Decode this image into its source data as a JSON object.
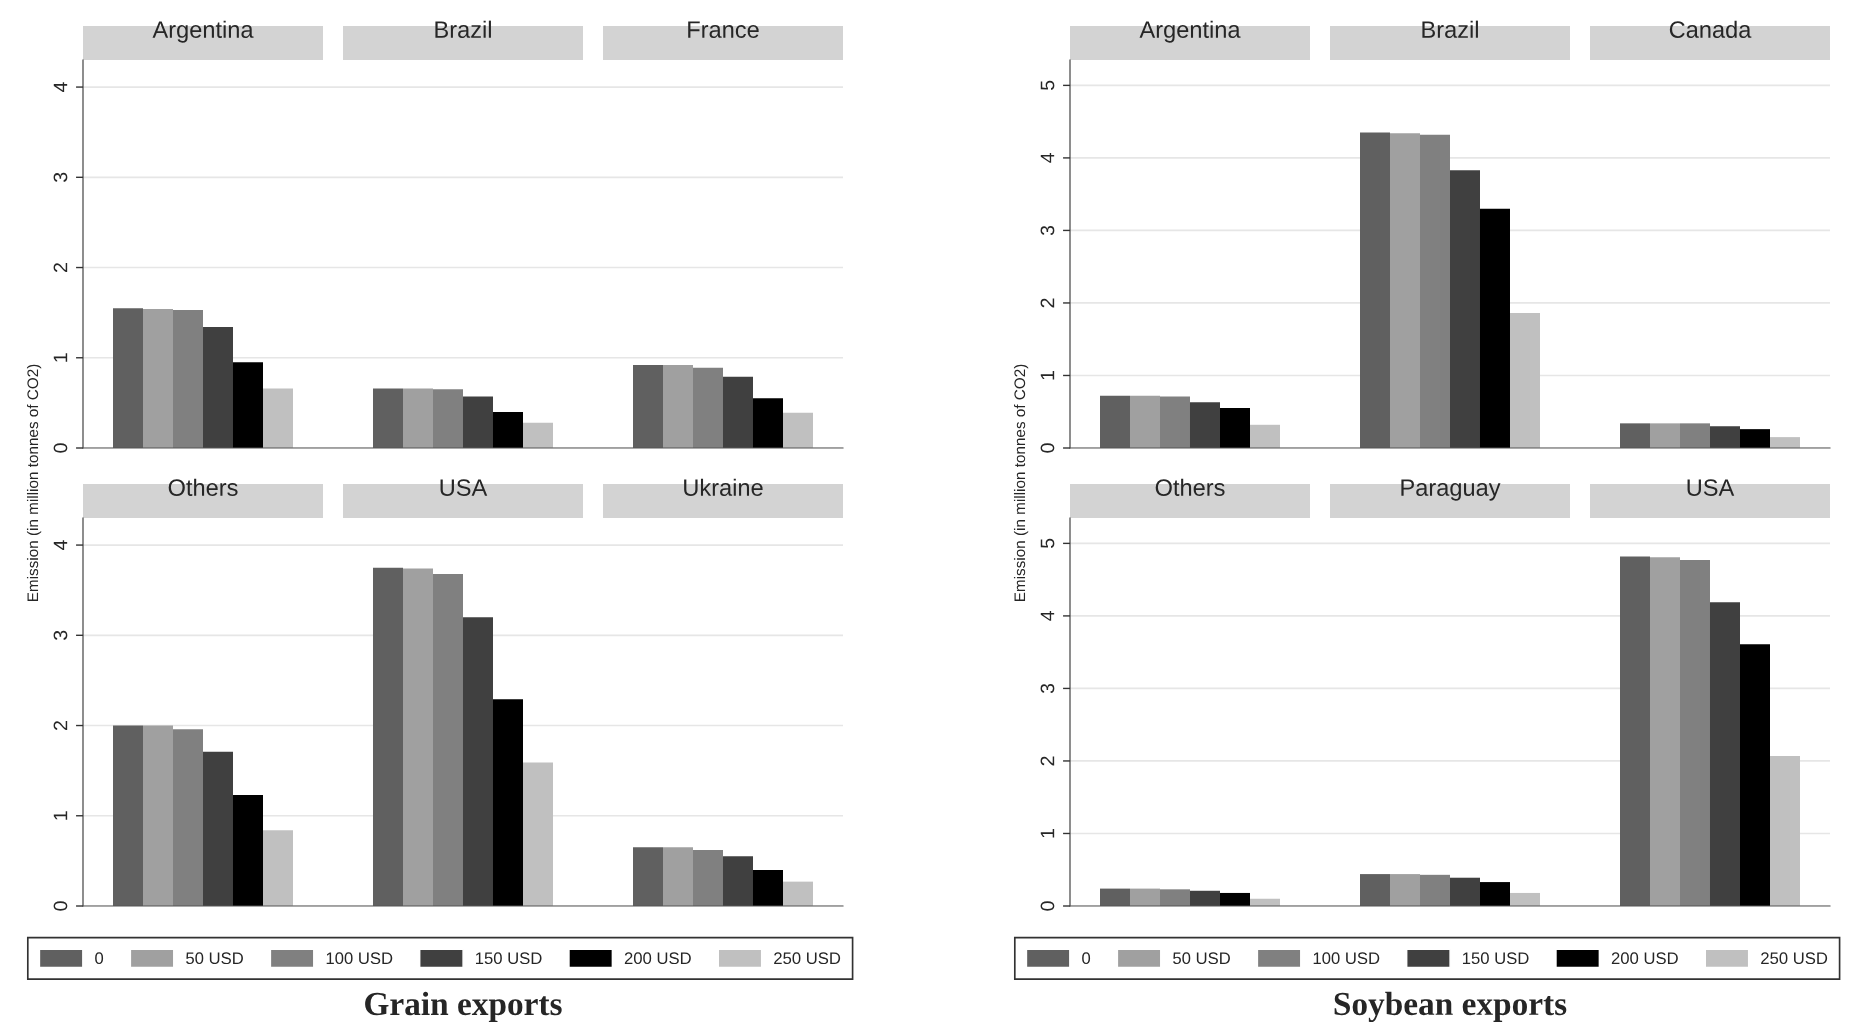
{
  "chart_data": [
    {
      "type": "bar",
      "ylabel": "Emission (in million tonnes of CO2)",
      "categories": [
        "Argentina",
        "Brazil",
        "France"
      ],
      "ylim": [
        0,
        4.3
      ],
      "yticks": [
        0,
        1,
        2,
        3,
        4
      ],
      "grid": "y",
      "series": [
        {
          "color": "#606060",
          "values": [
            1.55,
            0.66,
            0.92
          ]
        },
        {
          "color": "#a0a0a0",
          "values": [
            1.54,
            0.66,
            0.92
          ]
        },
        {
          "color": "#808080",
          "values": [
            1.53,
            0.65,
            0.89
          ]
        },
        {
          "color": "#404040",
          "values": [
            1.34,
            0.57,
            0.79
          ]
        },
        {
          "color": "#000000",
          "values": [
            0.95,
            0.4,
            0.55
          ]
        },
        {
          "color": "#c0c0c0",
          "values": [
            0.66,
            0.28,
            0.39
          ]
        }
      ]
    },
    {
      "type": "bar",
      "ylabel": "Emission (in million tonnes of CO2)",
      "categories": [
        "Argentina",
        "Brazil",
        "Canada"
      ],
      "ylim": [
        0,
        5.35
      ],
      "yticks": [
        0,
        1,
        2,
        3,
        4,
        5
      ],
      "grid": "y",
      "series": [
        {
          "color": "#606060",
          "values": [
            0.72,
            4.35,
            0.34
          ]
        },
        {
          "color": "#a0a0a0",
          "values": [
            0.72,
            4.34,
            0.34
          ]
        },
        {
          "color": "#808080",
          "values": [
            0.71,
            4.32,
            0.34
          ]
        },
        {
          "color": "#404040",
          "values": [
            0.63,
            3.83,
            0.3
          ]
        },
        {
          "color": "#000000",
          "values": [
            0.55,
            3.3,
            0.26
          ]
        },
        {
          "color": "#c0c0c0",
          "values": [
            0.32,
            1.86,
            0.15
          ]
        }
      ]
    },
    {
      "type": "bar",
      "categories": [
        "Others",
        "USA",
        "Ukraine"
      ],
      "ylim": [
        0,
        4.3
      ],
      "yticks": [
        0,
        1,
        2,
        3,
        4
      ],
      "grid": "y",
      "legend": "bottom",
      "annotations": [
        "Grain exports"
      ],
      "series": [
        {
          "name": "0",
          "color": "#606060",
          "values": [
            2.0,
            3.75,
            0.65
          ]
        },
        {
          "name": "50 USD",
          "color": "#a0a0a0",
          "values": [
            2.0,
            3.74,
            0.65
          ]
        },
        {
          "name": "100 USD",
          "color": "#808080",
          "values": [
            1.96,
            3.68,
            0.62
          ]
        },
        {
          "name": "150 USD",
          "color": "#404040",
          "values": [
            1.71,
            3.2,
            0.55
          ]
        },
        {
          "name": "200 USD",
          "color": "#000000",
          "values": [
            1.23,
            2.29,
            0.4
          ]
        },
        {
          "name": "250 USD",
          "color": "#c0c0c0",
          "values": [
            0.84,
            1.59,
            0.27
          ]
        }
      ]
    },
    {
      "type": "bar",
      "categories": [
        "Others",
        "Paraguay",
        "USA"
      ],
      "ylim": [
        0,
        5.35
      ],
      "yticks": [
        0,
        1,
        2,
        3,
        4,
        5
      ],
      "grid": "y",
      "legend": "bottom",
      "annotations": [
        "Soybean exports"
      ],
      "series": [
        {
          "name": "0",
          "color": "#606060",
          "values": [
            0.24,
            0.44,
            4.82
          ]
        },
        {
          "name": "50 USD",
          "color": "#a0a0a0",
          "values": [
            0.24,
            0.44,
            4.81
          ]
        },
        {
          "name": "100 USD",
          "color": "#808080",
          "values": [
            0.23,
            0.43,
            4.77
          ]
        },
        {
          "name": "150 USD",
          "color": "#404040",
          "values": [
            0.21,
            0.39,
            4.19
          ]
        },
        {
          "name": "200 USD",
          "color": "#000000",
          "values": [
            0.18,
            0.33,
            3.61
          ]
        },
        {
          "name": "250 USD",
          "color": "#c0c0c0",
          "values": [
            0.1,
            0.18,
            2.07
          ]
        }
      ]
    }
  ]
}
